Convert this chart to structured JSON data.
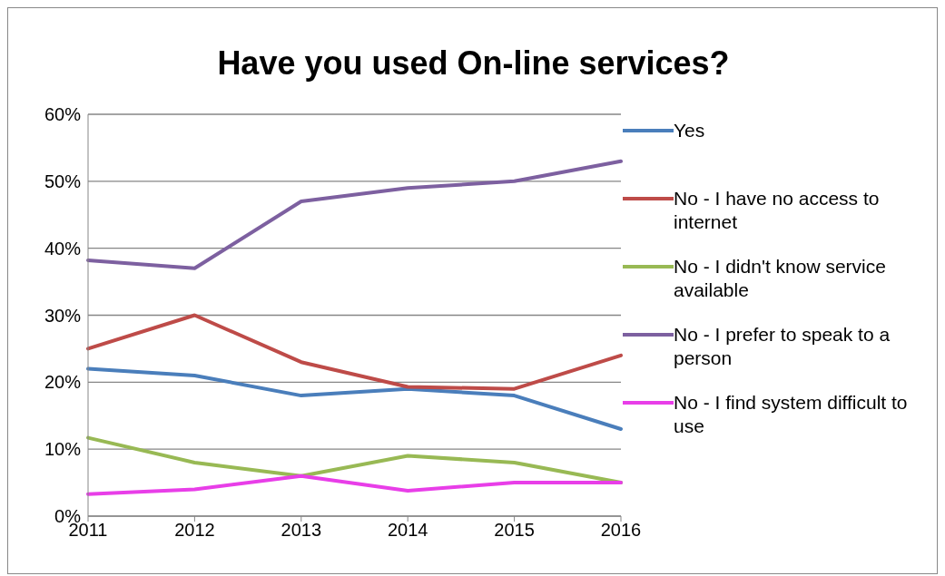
{
  "chart_data": {
    "type": "line",
    "title": "Have you used On-line services?",
    "categories": [
      "2011",
      "2012",
      "2013",
      "2014",
      "2015",
      "2016"
    ],
    "series": [
      {
        "name": "Yes",
        "color": "#4a7ebb",
        "values": [
          22,
          21,
          18,
          19,
          18,
          13
        ]
      },
      {
        "name": "No - I have no access to internet",
        "color": "#be4b48",
        "values": [
          25,
          30,
          23,
          19.3,
          19,
          24
        ]
      },
      {
        "name": "No - I didn't know service available",
        "color": "#98b954",
        "values": [
          11.7,
          8,
          6,
          9,
          8,
          5
        ]
      },
      {
        "name": "No - I prefer to speak to a person",
        "color": "#7d60a0",
        "values": [
          38.2,
          37,
          47,
          49,
          50,
          53
        ]
      },
      {
        "name": "No - I find system difficult to use",
        "color": "#e83ee8",
        "values": [
          3.3,
          4,
          6,
          3.8,
          5,
          5
        ]
      }
    ],
    "ylim": [
      0,
      60
    ],
    "yticks": [
      {
        "value": 0,
        "label": "0%"
      },
      {
        "value": 10,
        "label": "10%"
      },
      {
        "value": 20,
        "label": "20%"
      },
      {
        "value": 30,
        "label": "30%"
      },
      {
        "value": 40,
        "label": "40%"
      },
      {
        "value": 50,
        "label": "50%"
      },
      {
        "value": 60,
        "label": "60%"
      }
    ],
    "grid": "y",
    "legend": "right",
    "marker": "none"
  }
}
